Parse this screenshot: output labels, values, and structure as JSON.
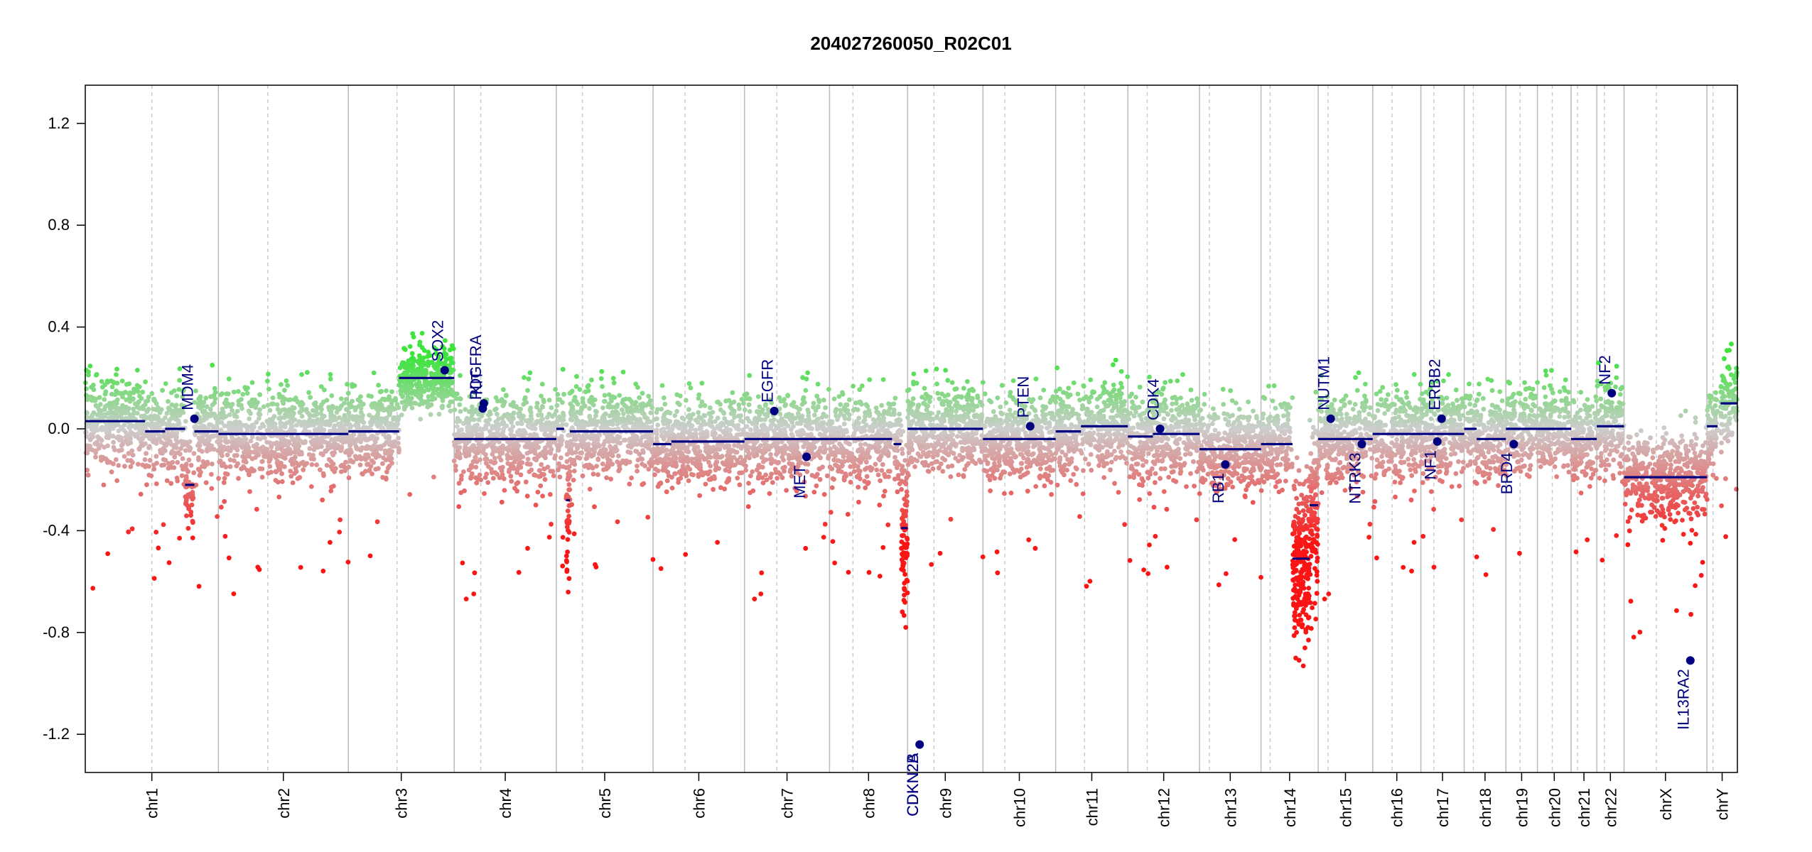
{
  "chart_data": {
    "type": "scatter",
    "title": "204027260050_R02C01",
    "xlabel": "",
    "ylabel": "",
    "ylim": [
      -1.35,
      1.35
    ],
    "y_ticks": [
      -1.2,
      -0.8,
      -0.4,
      0.0,
      0.4,
      0.8,
      1.2
    ],
    "y_tick_labels": [
      "-1.2",
      "-0.8",
      "-0.4",
      "0.0",
      "0.4",
      "0.8",
      "1.2"
    ],
    "grid": "chromosome separators (solid) and centromeres (dashed)",
    "legend": "none",
    "colors": {
      "gain": "#2ee62e",
      "neutral": "#bbbbbb",
      "loss": "#ff0000",
      "segment": "#000080",
      "gene": "#000080"
    },
    "chromosomes": [
      {
        "name": "chr1",
        "size": 249,
        "centromere": 0.5
      },
      {
        "name": "chr2",
        "size": 243,
        "centromere": 0.38
      },
      {
        "name": "chr3",
        "size": 198,
        "centromere": 0.46
      },
      {
        "name": "chr4",
        "size": 191,
        "centromere": 0.26
      },
      {
        "name": "chr5",
        "size": 181,
        "centromere": 0.27
      },
      {
        "name": "chr6",
        "size": 171,
        "centromere": 0.35
      },
      {
        "name": "chr7",
        "size": 159,
        "centromere": 0.38
      },
      {
        "name": "chr8",
        "size": 146,
        "centromere": 0.3
      },
      {
        "name": "chr9",
        "size": 141,
        "centromere": 0.35
      },
      {
        "name": "chr10",
        "size": 136,
        "centromere": 0.3
      },
      {
        "name": "chr11",
        "size": 135,
        "centromere": 0.4
      },
      {
        "name": "chr12",
        "size": 134,
        "centromere": 0.27
      },
      {
        "name": "chr13",
        "size": 115,
        "centromere": 0.16
      },
      {
        "name": "chr14",
        "size": 107,
        "centromere": 0.16
      },
      {
        "name": "chr15",
        "size": 102,
        "centromere": 0.18
      },
      {
        "name": "chr16",
        "size": 90,
        "centromere": 0.4
      },
      {
        "name": "chr17",
        "size": 81,
        "centromere": 0.3
      },
      {
        "name": "chr18",
        "size": 78,
        "centromere": 0.22
      },
      {
        "name": "chr19",
        "size": 59,
        "centromere": 0.45
      },
      {
        "name": "chr20",
        "size": 63,
        "centromere": 0.44
      },
      {
        "name": "chr21",
        "size": 48,
        "centromere": 0.25
      },
      {
        "name": "chr22",
        "size": 51,
        "centromere": 0.28
      },
      {
        "name": "chrX",
        "size": 155,
        "centromere": 0.39
      },
      {
        "name": "chrY",
        "size": 57,
        "centromere": 0.2
      }
    ],
    "segments": [
      {
        "chr": "chr1",
        "start": 0.0,
        "end": 0.45,
        "value": 0.03
      },
      {
        "chr": "chr1",
        "start": 0.45,
        "end": 0.6,
        "value": -0.01
      },
      {
        "chr": "chr1",
        "start": 0.6,
        "end": 0.75,
        "value": 0.0
      },
      {
        "chr": "chr1",
        "start": 0.75,
        "end": 0.82,
        "value": -0.22
      },
      {
        "chr": "chr1",
        "start": 0.82,
        "end": 1.0,
        "value": -0.01
      },
      {
        "chr": "chr2",
        "start": 0.0,
        "end": 1.0,
        "value": -0.02
      },
      {
        "chr": "chr3",
        "start": 0.0,
        "end": 0.48,
        "value": -0.01
      },
      {
        "chr": "chr3",
        "start": 0.48,
        "end": 1.0,
        "value": 0.2
      },
      {
        "chr": "chr4",
        "start": 0.0,
        "end": 1.0,
        "value": -0.04
      },
      {
        "chr": "chr5",
        "start": 0.0,
        "end": 0.08,
        "value": 0.0
      },
      {
        "chr": "chr5",
        "start": 0.1,
        "end": 0.14,
        "value": -0.28
      },
      {
        "chr": "chr5",
        "start": 0.14,
        "end": 1.0,
        "value": -0.01
      },
      {
        "chr": "chr6",
        "start": 0.0,
        "end": 0.2,
        "value": -0.06
      },
      {
        "chr": "chr6",
        "start": 0.2,
        "end": 1.0,
        "value": -0.05
      },
      {
        "chr": "chr7",
        "start": 0.0,
        "end": 1.0,
        "value": -0.04
      },
      {
        "chr": "chr8",
        "start": 0.0,
        "end": 0.8,
        "value": -0.04
      },
      {
        "chr": "chr8",
        "start": 0.82,
        "end": 0.92,
        "value": -0.06
      },
      {
        "chr": "chr8",
        "start": 0.92,
        "end": 1.0,
        "value": -0.39
      },
      {
        "chr": "chr9",
        "start": 0.0,
        "end": 1.0,
        "value": 0.0
      },
      {
        "chr": "chr10",
        "start": 0.0,
        "end": 1.0,
        "value": -0.04
      },
      {
        "chr": "chr11",
        "start": 0.0,
        "end": 0.35,
        "value": -0.01
      },
      {
        "chr": "chr11",
        "start": 0.35,
        "end": 1.0,
        "value": 0.01
      },
      {
        "chr": "chr12",
        "start": 0.0,
        "end": 0.35,
        "value": -0.03
      },
      {
        "chr": "chr12",
        "start": 0.35,
        "end": 1.0,
        "value": -0.02
      },
      {
        "chr": "chr13",
        "start": 0.0,
        "end": 1.0,
        "value": -0.08
      },
      {
        "chr": "chr14",
        "start": 0.0,
        "end": 0.55,
        "value": -0.06
      },
      {
        "chr": "chr14",
        "start": 0.55,
        "end": 0.85,
        "value": -0.51
      },
      {
        "chr": "chr14",
        "start": 0.85,
        "end": 1.0,
        "value": -0.3
      },
      {
        "chr": "chr15",
        "start": 0.0,
        "end": 1.0,
        "value": -0.04
      },
      {
        "chr": "chr16",
        "start": 0.0,
        "end": 1.0,
        "value": -0.02
      },
      {
        "chr": "chr17",
        "start": 0.0,
        "end": 1.0,
        "value": -0.02
      },
      {
        "chr": "chr18",
        "start": 0.0,
        "end": 0.3,
        "value": 0.0
      },
      {
        "chr": "chr18",
        "start": 0.3,
        "end": 1.0,
        "value": -0.04
      },
      {
        "chr": "chr19",
        "start": 0.0,
        "end": 1.0,
        "value": 0.0
      },
      {
        "chr": "chr20",
        "start": 0.0,
        "end": 1.0,
        "value": 0.0
      },
      {
        "chr": "chr21",
        "start": 0.0,
        "end": 1.0,
        "value": -0.04
      },
      {
        "chr": "chr22",
        "start": 0.0,
        "end": 1.0,
        "value": 0.01
      },
      {
        "chr": "chrX",
        "start": 0.0,
        "end": 1.0,
        "value": -0.19
      },
      {
        "chr": "chrY",
        "start": 0.0,
        "end": 0.35,
        "value": 0.01
      },
      {
        "chr": "chrY",
        "start": 0.45,
        "end": 1.0,
        "value": 0.1
      }
    ],
    "genes": [
      {
        "name": "MDM4",
        "chr": "chr1",
        "pos": 0.82,
        "value": 0.04
      },
      {
        "name": "SOX2",
        "chr": "chr3",
        "pos": 0.91,
        "value": 0.23
      },
      {
        "name": "PDGFRA",
        "chr": "chr4",
        "pos": 0.28,
        "value": 0.08
      },
      {
        "name": "KIT",
        "chr": "chr4",
        "pos": 0.29,
        "value": 0.1
      },
      {
        "name": "EGFR",
        "chr": "chr7",
        "pos": 0.35,
        "value": 0.07
      },
      {
        "name": "MET",
        "chr": "chr7",
        "pos": 0.73,
        "value": -0.11
      },
      {
        "name": "CDKN2A",
        "chr": "chr9",
        "pos": 0.16,
        "value": -1.24
      },
      {
        "name": "CDKN2B",
        "chr": "chr9",
        "pos": 0.16,
        "value": -1.24
      },
      {
        "name": "PTEN",
        "chr": "chr10",
        "pos": 0.65,
        "value": 0.01
      },
      {
        "name": "CDK4",
        "chr": "chr12",
        "pos": 0.45,
        "value": 0.0
      },
      {
        "name": "RB1",
        "chr": "chr13",
        "pos": 0.42,
        "value": -0.14
      },
      {
        "name": "NUTM1",
        "chr": "chr15",
        "pos": 0.23,
        "value": 0.04
      },
      {
        "name": "NTRK3",
        "chr": "chr15",
        "pos": 0.8,
        "value": -0.06
      },
      {
        "name": "ERBB2",
        "chr": "chr17",
        "pos": 0.48,
        "value": 0.04
      },
      {
        "name": "NF1",
        "chr": "chr17",
        "pos": 0.38,
        "value": -0.05
      },
      {
        "name": "BRD4",
        "chr": "chr19",
        "pos": 0.25,
        "value": -0.06
      },
      {
        "name": "NF2",
        "chr": "chr22",
        "pos": 0.55,
        "value": 0.14
      },
      {
        "name": "IL13RA2",
        "chr": "chrX",
        "pos": 0.8,
        "value": -0.91
      }
    ]
  }
}
